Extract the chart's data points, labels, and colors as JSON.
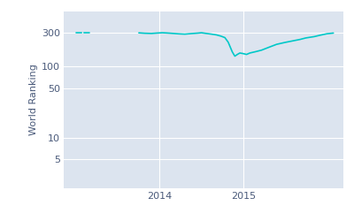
{
  "ylabel": "World Ranking",
  "bg_color": "#dce4ef",
  "plot_bg_color": "#dce4ef",
  "outer_bg_color": "#ffffff",
  "line_color": "#00c8c8",
  "line_width": 1.2,
  "yticks": [
    5,
    10,
    50,
    100,
    300
  ],
  "xtick_years": [
    "2014",
    "2015"
  ],
  "segments": [
    {
      "x": [
        2013.0,
        2013.08,
        2013.16
      ],
      "y": [
        300,
        300,
        300
      ],
      "linestyle": "dashed"
    },
    {
      "x": [
        2013.75,
        2013.82,
        2013.9,
        2013.97,
        2014.03,
        2014.08,
        2014.15,
        2014.22,
        2014.3,
        2014.38,
        2014.45,
        2014.5,
        2014.55,
        2014.62,
        2014.68,
        2014.73,
        2014.78,
        2014.82,
        2014.87,
        2014.9,
        2014.93,
        2014.96,
        2015.0,
        2015.04,
        2015.08,
        2015.15,
        2015.22,
        2015.3,
        2015.4,
        2015.5,
        2015.6,
        2015.68,
        2015.75,
        2015.85,
        2015.92,
        2016.0,
        2016.08
      ],
      "y": [
        297,
        293,
        291,
        295,
        298,
        296,
        292,
        288,
        285,
        290,
        294,
        298,
        292,
        285,
        278,
        268,
        255,
        220,
        160,
        140,
        148,
        155,
        152,
        148,
        155,
        162,
        170,
        185,
        205,
        218,
        230,
        240,
        252,
        263,
        275,
        288,
        295
      ],
      "linestyle": "solid"
    }
  ],
  "xlim": [
    2012.85,
    2016.2
  ],
  "ylim_log": [
    2,
    600
  ],
  "grid_color": "#ffffff",
  "tick_color": "#4a5a7a",
  "label_color": "#4a5a7a"
}
